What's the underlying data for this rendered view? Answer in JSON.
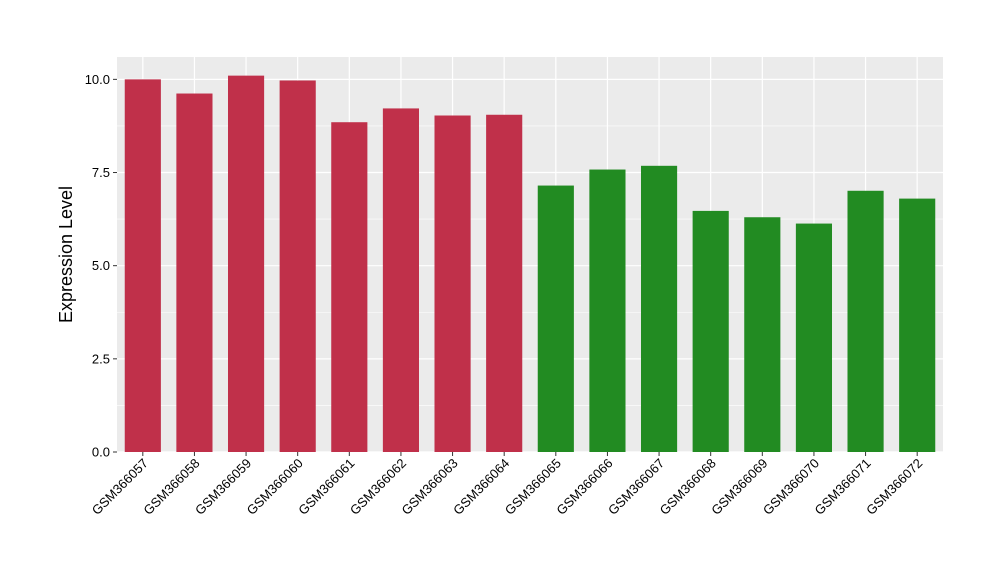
{
  "chart_data": {
    "type": "bar",
    "title": "",
    "xlabel": "",
    "ylabel": "Expression Level",
    "ylim": [
      0,
      10.6
    ],
    "yticks": [
      0.0,
      2.5,
      5.0,
      7.5,
      10.0
    ],
    "ytick_labels": [
      "0.0",
      "2.5",
      "5.0",
      "7.5",
      "10.0"
    ],
    "grid": true,
    "legend": "none",
    "categories": [
      "GSM366057",
      "GSM366058",
      "GSM366059",
      "GSM366060",
      "GSM366061",
      "GSM366062",
      "GSM366063",
      "GSM366064",
      "GSM366065",
      "GSM366066",
      "GSM366067",
      "GSM366068",
      "GSM366069",
      "GSM366070",
      "GSM366071",
      "GSM366072"
    ],
    "values": [
      10.0,
      9.62,
      10.1,
      9.97,
      8.85,
      9.22,
      9.03,
      9.05,
      7.15,
      7.58,
      7.68,
      6.47,
      6.3,
      6.13,
      7.01,
      6.8
    ],
    "bar_colors": [
      "#c0304a",
      "#c0304a",
      "#c0304a",
      "#c0304a",
      "#c0304a",
      "#c0304a",
      "#c0304a",
      "#c0304a",
      "#228b22",
      "#228b22",
      "#228b22",
      "#228b22",
      "#228b22",
      "#228b22",
      "#228b22",
      "#228b22"
    ],
    "panel_background": "#ebebeb",
    "grid_color": "#ffffff"
  }
}
